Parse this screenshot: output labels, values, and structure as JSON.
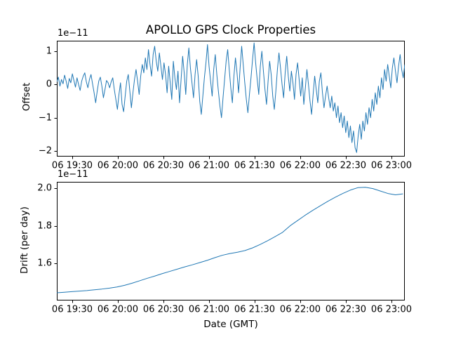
{
  "chart_data": [
    {
      "type": "line",
      "title": "APOLLO GPS Clock Properties",
      "ylabel": "Offset",
      "offset_text": "1e−11",
      "grid": false,
      "legend": null,
      "xlim_minutes": [
        1159.8,
        1388.7
      ],
      "ylim": [
        -2.171,
        1.317
      ],
      "x_ticks": [
        {
          "label": "06 19:30",
          "minute": 1170
        },
        {
          "label": "06 20:00",
          "minute": 1200
        },
        {
          "label": "06 20:30",
          "minute": 1230
        },
        {
          "label": "06 21:00",
          "minute": 1260
        },
        {
          "label": "06 21:30",
          "minute": 1290
        },
        {
          "label": "06 22:00",
          "minute": 1320
        },
        {
          "label": "06 22:30",
          "minute": 1350
        },
        {
          "label": "06 23:00",
          "minute": 1380
        }
      ],
      "y_ticks": [
        {
          "label": "1",
          "value": 1
        },
        {
          "label": "0",
          "value": 0
        },
        {
          "label": "−1",
          "value": -1
        },
        {
          "label": "−2",
          "value": -2
        }
      ],
      "series": [
        {
          "name": "offset",
          "color": "#1f77b4",
          "x_start_min": 1159.8,
          "x_step_min": 1.0218,
          "values": [
            0.08,
            0.22,
            -0.05,
            0.15,
            0.02,
            0.28,
            0.1,
            -0.12,
            0.18,
            0.05,
            0.32,
            0.12,
            -0.08,
            0.2,
            0.0,
            -0.18,
            0.1,
            0.25,
            0.35,
            0.08,
            -0.1,
            0.15,
            0.3,
            0.02,
            -0.25,
            -0.55,
            -0.2,
            0.1,
            0.22,
            -0.05,
            -0.4,
            -0.15,
            0.12,
            0.05,
            -0.1,
            0.08,
            0.2,
            -0.15,
            -0.45,
            -0.75,
            -0.3,
            0.05,
            -0.6,
            -0.82,
            -0.35,
            0.1,
            0.3,
            -0.2,
            -0.7,
            -0.25,
            0.15,
            0.45,
            0.1,
            -0.3,
            0.25,
            0.6,
            0.35,
            0.8,
            0.45,
            1.05,
            0.6,
            0.25,
            0.9,
            1.15,
            0.7,
            0.4,
            0.95,
            0.55,
            0.15,
            0.65,
            0.3,
            -0.25,
            0.55,
            0.05,
            -0.45,
            0.7,
            0.2,
            -0.15,
            0.4,
            -0.55,
            0.15,
            0.85,
            0.35,
            -0.3,
            0.6,
            1.1,
            0.5,
            0.05,
            -0.4,
            0.3,
            0.75,
            0.25,
            -0.5,
            -0.9,
            -0.35,
            0.2,
            0.65,
            1.2,
            0.55,
            0.1,
            -0.35,
            0.45,
            0.9,
            0.3,
            -0.2,
            -0.65,
            -1.0,
            -0.4,
            0.15,
            0.7,
            1.05,
            0.45,
            -0.1,
            -0.55,
            0.25,
            0.8,
            0.35,
            -0.25,
            0.5,
            1.15,
            0.6,
            0.05,
            -0.45,
            -0.85,
            -0.3,
            0.2,
            0.75,
            1.25,
            0.65,
            0.15,
            -0.3,
            0.55,
            1.0,
            0.4,
            -0.15,
            -0.6,
            0.1,
            0.7,
            0.3,
            -0.35,
            -0.75,
            -0.2,
            0.45,
            0.95,
            0.5,
            0.0,
            -0.4,
            0.35,
            0.85,
            0.25,
            -0.2,
            0.4,
            0.05,
            -0.45,
            0.3,
            0.65,
            0.15,
            -0.35,
            0.2,
            -0.6,
            -0.1,
            0.45,
            0.0,
            -0.5,
            -0.9,
            -0.3,
            0.25,
            -0.15,
            -0.55,
            0.1,
            0.35,
            -0.25,
            -0.7,
            -0.35,
            -0.05,
            -0.4,
            -0.7,
            -0.35,
            -0.8,
            -0.55,
            -1.0,
            -0.65,
            -1.15,
            -0.85,
            -1.3,
            -0.95,
            -1.45,
            -1.1,
            -1.6,
            -1.25,
            -1.75,
            -1.4,
            -1.9,
            -2.05,
            -1.55,
            -1.2,
            -1.65,
            -1.1,
            -1.4,
            -0.85,
            -1.2,
            -0.7,
            -1.0,
            -0.45,
            -0.8,
            -0.25,
            -0.6,
            -0.05,
            -0.4,
            0.2,
            -0.15,
            0.45,
            0.1,
            0.6,
            0.25,
            -0.1,
            0.5,
            0.8,
            0.4,
            0.05,
            0.55,
            0.9,
            0.45,
            0.2,
            0.6
          ]
        }
      ]
    },
    {
      "type": "line",
      "ylabel": "Drift (per day)",
      "xlabel": "Date (GMT)",
      "offset_text": "1e−11",
      "grid": false,
      "legend": null,
      "xlim_minutes": [
        1159.8,
        1388.7
      ],
      "ylim": [
        1.402,
        2.034
      ],
      "x_ticks": [
        {
          "label": "06 19:30",
          "minute": 1170
        },
        {
          "label": "06 20:00",
          "minute": 1200
        },
        {
          "label": "06 20:30",
          "minute": 1230
        },
        {
          "label": "06 21:00",
          "minute": 1260
        },
        {
          "label": "06 21:30",
          "minute": 1290
        },
        {
          "label": "06 22:00",
          "minute": 1320
        },
        {
          "label": "06 22:30",
          "minute": 1350
        },
        {
          "label": "06 23:00",
          "minute": 1380
        }
      ],
      "y_ticks": [
        {
          "label": "2.0",
          "value": 2.0
        },
        {
          "label": "1.8",
          "value": 1.8
        },
        {
          "label": "1.6",
          "value": 1.6
        }
      ],
      "series": [
        {
          "name": "drift",
          "color": "#1f77b4",
          "x_start_min": 1159.8,
          "x_step_min": 4.95,
          "values": [
            1.443,
            1.446,
            1.449,
            1.452,
            1.455,
            1.459,
            1.463,
            1.468,
            1.474,
            1.483,
            1.494,
            1.507,
            1.52,
            1.532,
            1.545,
            1.557,
            1.569,
            1.581,
            1.592,
            1.604,
            1.616,
            1.63,
            1.643,
            1.652,
            1.659,
            1.668,
            1.682,
            1.7,
            1.72,
            1.742,
            1.765,
            1.8,
            1.828,
            1.856,
            1.882,
            1.906,
            1.93,
            1.952,
            1.972,
            1.99,
            2.003,
            2.005,
            1.998,
            1.985,
            1.972,
            1.965,
            1.97
          ]
        }
      ]
    }
  ]
}
